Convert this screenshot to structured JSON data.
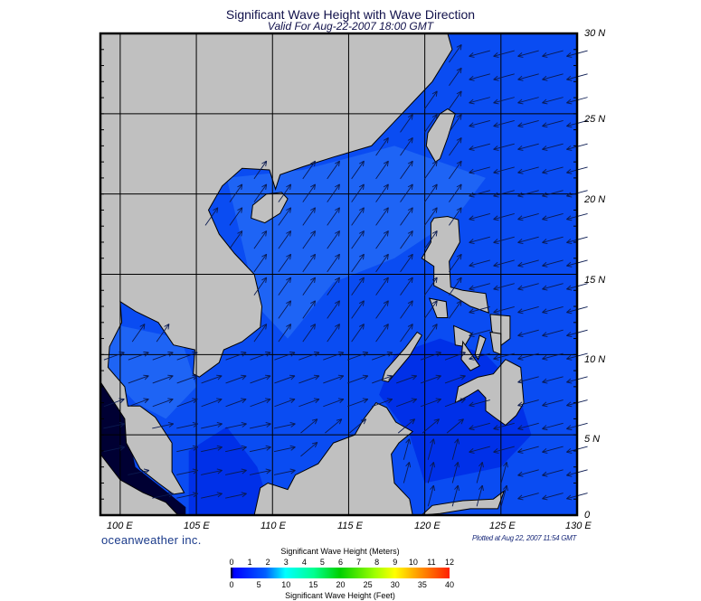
{
  "header": {
    "title": "Significant Wave Height with Wave Direction",
    "subtitle": "Valid For Aug-22-2007 18:00 GMT"
  },
  "map": {
    "region": "South China Sea / Philippines",
    "lon_range": [
      98.7,
      130
    ],
    "lat_range": [
      0,
      30
    ],
    "lat_labels": [
      "30 N",
      "25 N",
      "20 N",
      "15 N",
      "10 N",
      "5 N",
      "0"
    ],
    "lon_labels": [
      "100 E",
      "105 E",
      "110 E",
      "115 E",
      "120 E",
      "125 E",
      "130 E"
    ],
    "colors": {
      "land": "#c0c0c0",
      "ocean": "#0a4cf2",
      "ocean_light": "#1e64f5",
      "ocean_dark": "#0030e8",
      "shallow_dark": "#000033",
      "arrow": "#0a1a50"
    }
  },
  "footer": {
    "logo": "oceanweather inc.",
    "plotted": "Plotted at Aug 22, 2007 11:54 GMT"
  },
  "colorbar": {
    "title_top": "Significant Wave Height (Meters)",
    "title_bottom": "Significant Wave Height (Feet)",
    "meters": [
      "0",
      "1",
      "2",
      "3",
      "4",
      "5",
      "6",
      "7",
      "8",
      "9",
      "10",
      "11",
      "12"
    ],
    "feet": [
      "0",
      "5",
      "10",
      "15",
      "20",
      "25",
      "30",
      "35",
      "40"
    ]
  }
}
